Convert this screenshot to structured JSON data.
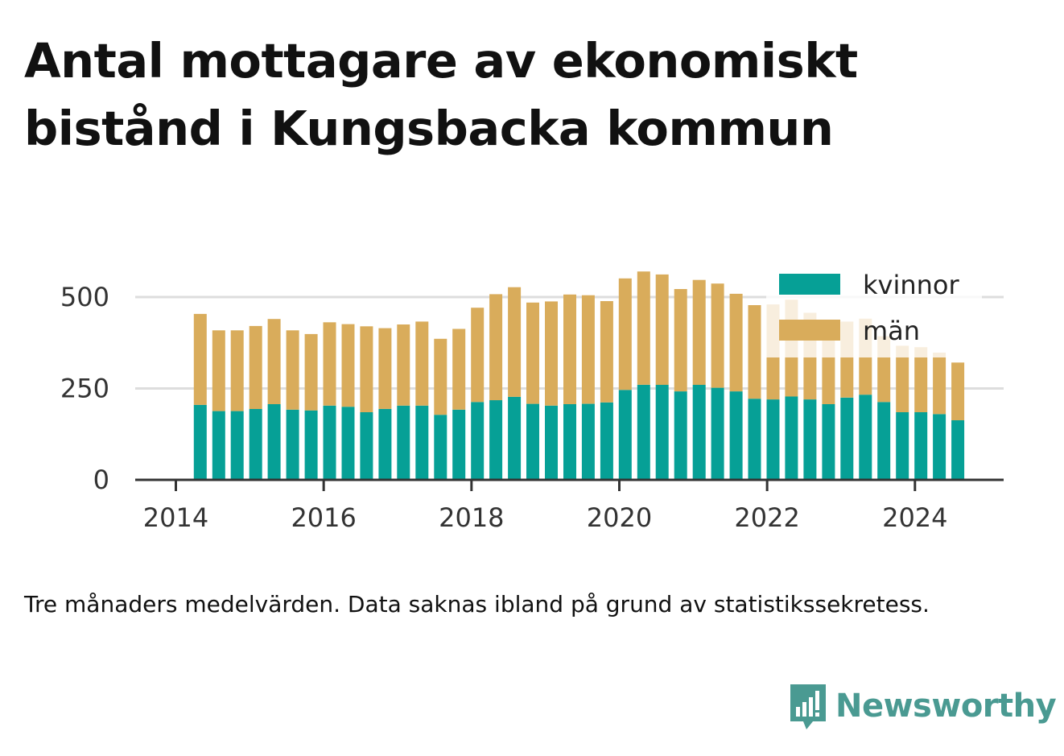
{
  "title": "Antal mottagare av ekonomiskt bistånd i Kungsbacka kommun",
  "caption": "Tre månaders medelvärden. Data saknas ibland på grund av statistikssekretess.",
  "brand": "Newsworthy",
  "colors": {
    "kvinnor": "#06a096",
    "man": "#d9ac5b",
    "grid": "#dddddd",
    "axis": "#333333",
    "brand": "#4a9a92"
  },
  "chart_data": {
    "type": "bar",
    "stacked": true,
    "x": [
      2014.33,
      2014.58,
      2014.83,
      2015.08,
      2015.33,
      2015.58,
      2015.83,
      2016.08,
      2016.33,
      2016.58,
      2016.83,
      2017.08,
      2017.33,
      2017.58,
      2017.83,
      2018.08,
      2018.33,
      2018.58,
      2018.83,
      2019.08,
      2019.33,
      2019.58,
      2019.83,
      2020.08,
      2020.33,
      2020.58,
      2020.83,
      2021.08,
      2021.33,
      2021.58,
      2021.83,
      2022.08,
      2022.33,
      2022.58,
      2022.83,
      2023.08,
      2023.33,
      2023.58,
      2023.83,
      2024.08,
      2024.33,
      2024.58
    ],
    "series": [
      {
        "name": "kvinnor",
        "values": [
          205,
          188,
          188,
          194,
          207,
          192,
          190,
          203,
          200,
          185,
          194,
          203,
          203,
          178,
          192,
          213,
          218,
          227,
          208,
          203,
          207,
          208,
          212,
          246,
          260,
          260,
          242,
          260,
          252,
          242,
          222,
          220,
          228,
          220,
          207,
          225,
          233,
          213,
          185,
          185,
          180,
          163
        ]
      },
      {
        "name": "män",
        "values": [
          249,
          221,
          221,
          227,
          233,
          217,
          209,
          228,
          226,
          235,
          221,
          222,
          230,
          208,
          221,
          258,
          290,
          300,
          277,
          285,
          300,
          297,
          277,
          305,
          310,
          302,
          280,
          287,
          285,
          267,
          256,
          260,
          265,
          237,
          228,
          208,
          208,
          180,
          182,
          178,
          168,
          158
        ]
      }
    ],
    "yticks": [
      0,
      250,
      500
    ],
    "xticks": [
      2014,
      2016,
      2018,
      2020,
      2022,
      2024
    ],
    "ylim": [
      0,
      580
    ],
    "xlim": [
      2013.45,
      2025.2
    ],
    "legend": [
      "kvinnor",
      "män"
    ],
    "legend_position": "top-right",
    "grid": true
  }
}
